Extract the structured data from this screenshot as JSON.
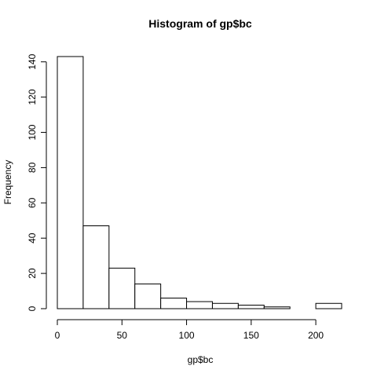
{
  "chart_data": {
    "type": "bar",
    "title": "Histogram of gp$bc",
    "xlabel": "gp$bc",
    "ylabel": "Frequency",
    "bin_edges": [
      0,
      20,
      40,
      60,
      80,
      100,
      120,
      140,
      160,
      180,
      200,
      220
    ],
    "values": [
      143,
      47,
      23,
      14,
      6,
      4,
      3,
      2,
      1,
      0,
      3
    ],
    "xlim": [
      0,
      220
    ],
    "ylim": [
      0,
      143
    ],
    "x_ticks": [
      0,
      50,
      100,
      150,
      200
    ],
    "y_ticks": [
      0,
      20,
      40,
      60,
      80,
      100,
      120,
      140
    ],
    "grid": false,
    "legend": "none",
    "colors": {
      "bar_fill": "#ffffff",
      "bar_stroke": "#000000"
    }
  }
}
